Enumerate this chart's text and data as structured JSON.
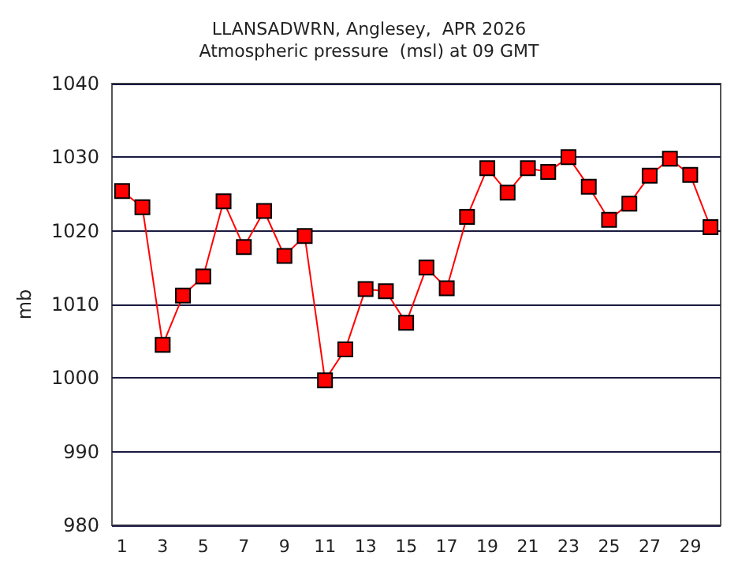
{
  "chart_data": {
    "type": "line",
    "title": "LLANSADWRN, Anglesey,  APR 2026",
    "subtitle": "Atmospheric pressure  (msl) at 09 GMT",
    "ylabel": "mb",
    "x": [
      1,
      2,
      3,
      4,
      5,
      6,
      7,
      8,
      9,
      10,
      11,
      12,
      13,
      14,
      15,
      16,
      17,
      18,
      19,
      20,
      21,
      22,
      23,
      24,
      25,
      26,
      27,
      28,
      29,
      30
    ],
    "xlim": [
      0.5,
      30.5
    ],
    "xticks": [
      1,
      3,
      5,
      7,
      9,
      11,
      13,
      15,
      17,
      19,
      21,
      23,
      25,
      27,
      29
    ],
    "series": [
      {
        "color": "#ff0000",
        "values": [
          1025.4,
          1023.2,
          1004.5,
          1011.2,
          1013.8,
          1024.0,
          1017.8,
          1022.7,
          1016.6,
          1019.3,
          999.7,
          1003.9,
          1012.1,
          1011.8,
          1007.5,
          1015.0,
          1012.2,
          1021.9,
          1028.5,
          1025.2,
          1028.5,
          1028.0,
          1030.0,
          1026.0,
          1021.5,
          1023.7,
          1027.5,
          1029.8,
          1027.6,
          1020.5
        ]
      }
    ],
    "ylim": [
      980,
      1040
    ],
    "yticks": [
      980,
      990,
      1000,
      1010,
      1020,
      1030,
      1040
    ],
    "grid": "y",
    "marker": "square",
    "line_style": "solid"
  }
}
